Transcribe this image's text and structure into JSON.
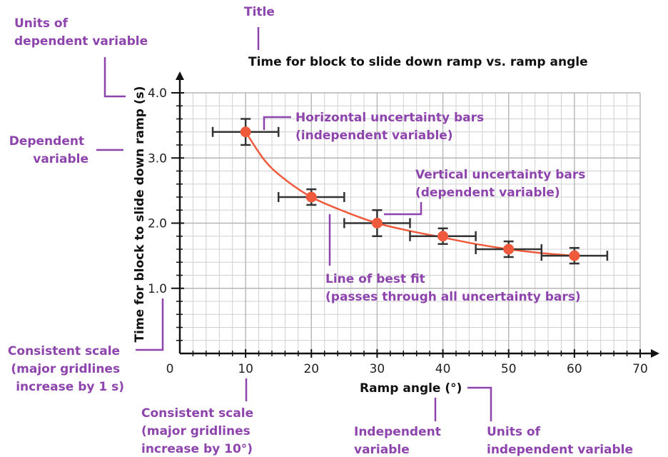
{
  "chart_data": {
    "type": "scatter",
    "title": "Time for block to slide down ramp vs. ramp angle",
    "xlabel": "Ramp angle (°)",
    "ylabel": "Time for block to slide down ramp (s)",
    "xlim": [
      0,
      70
    ],
    "ylim": [
      0,
      4.0
    ],
    "x_ticks": [
      "0",
      "10",
      "20",
      "30",
      "40",
      "50",
      "60",
      "70"
    ],
    "y_ticks": [
      "1.0",
      "2.0",
      "3.0",
      "4.0"
    ],
    "grid": true,
    "points": [
      {
        "x": 10,
        "y": 3.4,
        "x_err": 5,
        "y_err": 0.2
      },
      {
        "x": 20,
        "y": 2.4,
        "x_err": 5,
        "y_err": 0.12
      },
      {
        "x": 30,
        "y": 2.0,
        "x_err": 5,
        "y_err": 0.2
      },
      {
        "x": 40,
        "y": 1.8,
        "x_err": 5,
        "y_err": 0.12
      },
      {
        "x": 50,
        "y": 1.6,
        "x_err": 5,
        "y_err": 0.12
      },
      {
        "x": 60,
        "y": 1.5,
        "x_err": 5,
        "y_err": 0.12
      }
    ],
    "best_fit": [
      [
        10,
        3.4
      ],
      [
        13,
        2.95
      ],
      [
        16,
        2.67
      ],
      [
        20,
        2.4
      ],
      [
        25,
        2.18
      ],
      [
        30,
        2.0
      ],
      [
        35,
        1.88
      ],
      [
        40,
        1.78
      ],
      [
        45,
        1.68
      ],
      [
        50,
        1.6
      ],
      [
        55,
        1.54
      ],
      [
        60,
        1.5
      ]
    ]
  },
  "colors": {
    "point": "#f05a3c",
    "fit_line": "#f05a3c",
    "error_bar": "#333333",
    "annotation": "#8e44ad",
    "grid": "#d0d0d0"
  },
  "annotations": {
    "title_label": "Title",
    "units_dependent": [
      "Units of",
      "dependent variable"
    ],
    "dependent_variable": [
      "Dependent",
      "variable"
    ],
    "horizontal_bars": [
      "Horizontal uncertainty bars",
      "(independent variable)"
    ],
    "vertical_bars": [
      "Vertical uncertainty bars",
      "(dependent variable)"
    ],
    "best_fit": [
      "Line of best fit",
      "(passes through all uncertainty bars)"
    ],
    "scale_y": [
      "Consistent scale",
      "(major gridlines",
      "increase by 1 s)"
    ],
    "scale_x": [
      "Consistent scale",
      "(major gridlines",
      "increase by 10°)"
    ],
    "independent_variable": [
      "Independent",
      "variable"
    ],
    "units_independent": [
      "Units of",
      "independent variable"
    ]
  }
}
